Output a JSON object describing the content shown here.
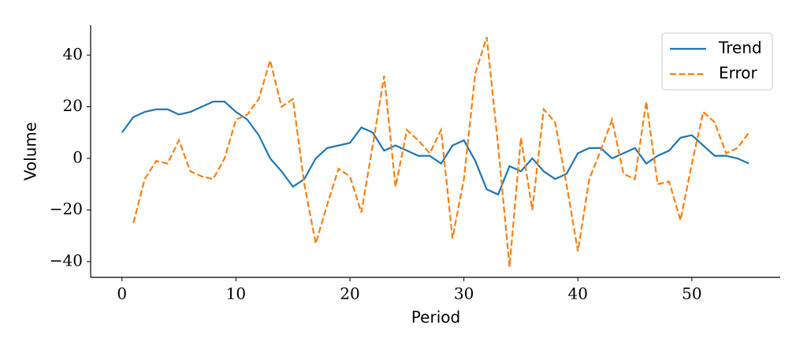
{
  "chart_data": {
    "type": "line",
    "x_label": "Period",
    "y_label": "Volume",
    "x": [
      0,
      1,
      2,
      3,
      4,
      5,
      6,
      7,
      8,
      9,
      10,
      11,
      12,
      13,
      14,
      15,
      16,
      17,
      18,
      19,
      20,
      21,
      22,
      23,
      24,
      25,
      26,
      27,
      28,
      29,
      30,
      31,
      32,
      33,
      34,
      35,
      36,
      37,
      38,
      39,
      40,
      41,
      42,
      43,
      44,
      45,
      46,
      47,
      48,
      49,
      50,
      51,
      52,
      53,
      54,
      55
    ],
    "series": [
      {
        "name": "Trend",
        "color": "#1f77b4",
        "linestyle": "solid",
        "values": [
          10,
          16,
          18,
          19,
          19,
          17,
          18,
          20,
          22,
          22,
          18,
          15,
          9,
          0,
          -5,
          -11,
          -8,
          0,
          4,
          5,
          6,
          12,
          10,
          3,
          5,
          3,
          1,
          1,
          -2,
          5,
          7,
          -1,
          -12,
          -14,
          -3,
          -5,
          0,
          -5,
          -8,
          -6,
          2,
          4,
          4,
          0,
          2,
          4,
          -2,
          1,
          3,
          8,
          9,
          5,
          1,
          1,
          0,
          -2
        ]
      },
      {
        "name": "Error",
        "color": "#ff7f0e",
        "linestyle": "dashed",
        "values": [
          null,
          -25,
          -8,
          -1,
          -2,
          7,
          -5,
          -7,
          -8,
          0,
          15,
          17,
          23,
          38,
          20,
          23,
          -10,
          -33,
          -18,
          -4,
          -7,
          -21,
          5,
          32,
          -11,
          11,
          7,
          2,
          11,
          -31,
          -8,
          33,
          47,
          5,
          -42,
          8,
          -20,
          19,
          14,
          -10,
          -36,
          -8,
          3,
          15,
          -6,
          -8,
          22,
          -10,
          -9,
          -24,
          -2,
          18,
          14,
          2,
          4,
          10
        ]
      }
    ],
    "xlim": [
      -2.75,
      57.75
    ],
    "xticks": [
      0,
      10,
      20,
      30,
      40,
      50
    ],
    "ylim": [
      -46.1,
      51.6
    ],
    "yticks": [
      {
        "value": -40,
        "label": "−40"
      },
      {
        "value": -20,
        "label": "−20"
      },
      0,
      20,
      40
    ],
    "grid": false,
    "legend": "upper right"
  }
}
